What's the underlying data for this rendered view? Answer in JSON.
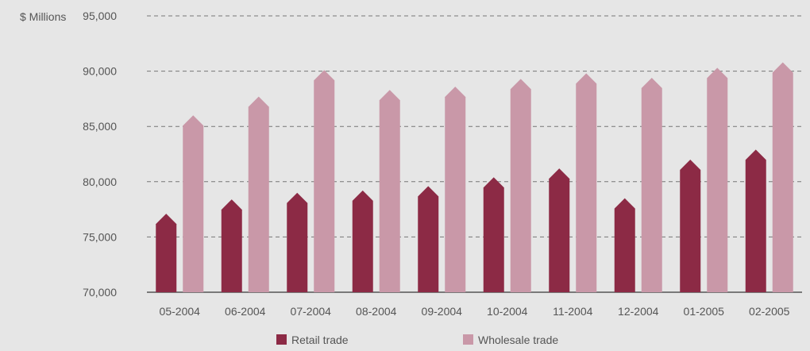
{
  "chart_data": {
    "type": "bar",
    "unit_label": "$ Millions",
    "categories": [
      "05-2004",
      "06-2004",
      "07-2004",
      "08-2004",
      "09-2004",
      "10-2004",
      "11-2004",
      "12-2004",
      "01-2005",
      "02-2005"
    ],
    "series": [
      {
        "name": "Retail trade",
        "color": "#8c2a45",
        "values": [
          77100,
          78400,
          79000,
          79200,
          79600,
          80400,
          81200,
          78500,
          82000,
          82900
        ]
      },
      {
        "name": "Wholesale trade",
        "color": "#c998a8",
        "values": [
          86000,
          87700,
          90100,
          88300,
          88600,
          89300,
          89800,
          89400,
          90300,
          90800
        ]
      }
    ],
    "y_ticks": [
      "95,000",
      "90,000",
      "85,000",
      "80,000",
      "75,000",
      "70,000"
    ],
    "ylim": [
      70000,
      95000
    ],
    "grid": true,
    "legend_position": "bottom-center"
  }
}
